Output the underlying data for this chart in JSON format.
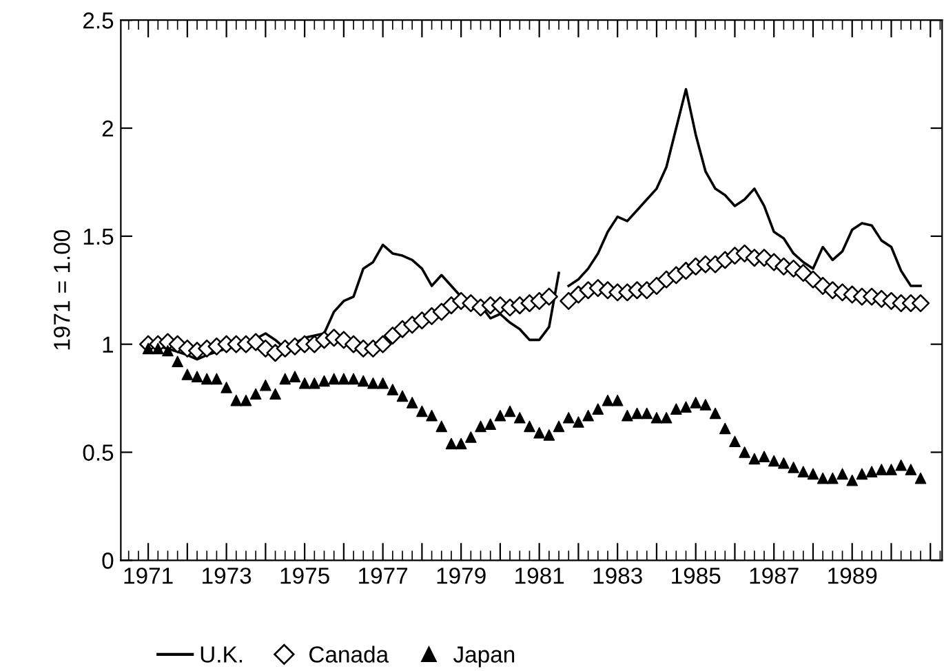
{
  "chart_data": {
    "type": "line",
    "ylabel": "1971 = 1.00",
    "xlim": [
      1970.3,
      1991.3
    ],
    "ylim": [
      0,
      2.5
    ],
    "xticks": [
      1971,
      {
        "value": 1972,
        "label": null
      },
      1973,
      {
        "value": 1974,
        "label": null
      },
      1975,
      {
        "value": 1976,
        "label": null
      },
      1977,
      {
        "value": 1978,
        "label": null
      },
      1979,
      {
        "value": 1980,
        "label": null
      },
      1981,
      {
        "value": 1982,
        "label": null
      },
      1983,
      {
        "value": 1984,
        "label": null
      },
      1985,
      {
        "value": 1986,
        "label": null
      },
      1987,
      {
        "value": 1988,
        "label": null
      },
      1989,
      {
        "value": 1990,
        "label": null
      },
      {
        "value": 1991,
        "label": null
      }
    ],
    "yticks": [
      0,
      0.5,
      1,
      1.5,
      2,
      2.5
    ],
    "grid": false,
    "legend": "bottom",
    "series": [
      {
        "name": "U.K.",
        "color": "#000000",
        "marker": "none",
        "line_style": "solid",
        "x": [
          1971,
          1971.5,
          1972,
          1972.25,
          1972.5,
          1973,
          1973.5,
          1974,
          1974.25,
          1974.5,
          1975,
          1975.5,
          1975.75,
          1976,
          1976.25,
          1976.5,
          1976.75,
          1977,
          1977.25,
          1977.5,
          1977.75,
          1978,
          1978.25,
          1978.5,
          1978.75,
          1979,
          1979.5,
          1979.75,
          1980,
          1980.25,
          1980.5,
          1980.75,
          1981,
          1981.25,
          1981.5,
          1981.6,
          1981.75,
          1982,
          1982.25,
          1982.5,
          1982.75,
          1983,
          1983.25,
          1983.5,
          1983.75,
          1984,
          1984.25,
          1984.5,
          1984.75,
          1985,
          1985.25,
          1985.5,
          1985.75,
          1986,
          1986.25,
          1986.5,
          1986.75,
          1987,
          1987.25,
          1987.5,
          1987.75,
          1988,
          1988.25,
          1988.5,
          1988.75,
          1989,
          1989.25,
          1989.5,
          1989.75,
          1990,
          1990.25,
          1990.5,
          1990.75
        ],
        "values": [
          1.0,
          0.98,
          0.95,
          0.93,
          0.95,
          0.98,
          1.0,
          1.05,
          1.02,
          0.98,
          1.03,
          1.05,
          1.15,
          1.2,
          1.22,
          1.35,
          1.38,
          1.46,
          1.42,
          1.41,
          1.39,
          1.35,
          1.27,
          1.32,
          1.27,
          1.22,
          1.18,
          1.12,
          1.14,
          1.1,
          1.07,
          1.02,
          1.02,
          1.08,
          1.33,
          null,
          1.27,
          1.3,
          1.35,
          1.42,
          1.52,
          1.59,
          1.57,
          1.62,
          1.67,
          1.72,
          1.82,
          2.0,
          2.18,
          1.97,
          1.8,
          1.72,
          1.69,
          1.64,
          1.67,
          1.72,
          1.64,
          1.52,
          1.49,
          1.42,
          1.38,
          1.35,
          1.45,
          1.39,
          1.43,
          1.53,
          1.56,
          1.55,
          1.48,
          1.45,
          1.34,
          1.27,
          1.27
        ]
      },
      {
        "name": "Canada",
        "type": "scatter",
        "color": "#000000",
        "marker": "diamond",
        "x": [
          1971,
          1971.25,
          1971.5,
          1971.75,
          1972,
          1972.25,
          1972.5,
          1972.75,
          1973,
          1973.25,
          1973.5,
          1973.75,
          1974,
          1974.25,
          1974.5,
          1974.75,
          1975,
          1975.25,
          1975.5,
          1975.75,
          1976,
          1976.25,
          1976.5,
          1976.75,
          1977,
          1977.25,
          1977.5,
          1977.75,
          1978,
          1978.25,
          1978.5,
          1978.75,
          1979,
          1979.25,
          1979.5,
          1979.75,
          1980,
          1980.25,
          1980.5,
          1980.75,
          1981,
          1981.25,
          1981.5,
          1981.75,
          1982,
          1982.25,
          1982.5,
          1982.75,
          1983,
          1983.25,
          1983.5,
          1983.75,
          1984,
          1984.25,
          1984.5,
          1984.75,
          1985,
          1985.25,
          1985.5,
          1985.75,
          1986,
          1986.25,
          1986.5,
          1986.75,
          1987,
          1987.25,
          1987.5,
          1987.75,
          1988,
          1988.25,
          1988.5,
          1988.75,
          1989,
          1989.25,
          1989.5,
          1989.75,
          1990,
          1990.25,
          1990.5,
          1990.75
        ],
        "values": [
          1.0,
          1.0,
          1.01,
          1.0,
          0.98,
          0.97,
          0.98,
          0.99,
          1.0,
          1.0,
          1.0,
          1.01,
          0.98,
          0.96,
          0.98,
          0.99,
          1.0,
          1.0,
          1.02,
          1.03,
          1.02,
          1.0,
          0.98,
          0.98,
          1.0,
          1.04,
          1.07,
          1.09,
          1.11,
          1.13,
          1.15,
          1.18,
          1.2,
          1.19,
          1.17,
          1.18,
          1.18,
          1.17,
          1.18,
          1.19,
          1.2,
          1.22,
          null,
          1.2,
          1.23,
          1.25,
          1.26,
          1.25,
          1.24,
          1.24,
          1.25,
          1.25,
          1.27,
          1.3,
          1.32,
          1.34,
          1.36,
          1.37,
          1.37,
          1.39,
          1.41,
          1.42,
          1.4,
          1.4,
          1.38,
          1.36,
          1.35,
          1.33,
          1.3,
          1.27,
          1.25,
          1.24,
          1.23,
          1.22,
          1.22,
          1.21,
          1.2,
          1.19,
          1.19,
          1.19
        ]
      },
      {
        "name": "Japan",
        "type": "scatter",
        "color": "#000000",
        "marker": "triangle",
        "x": [
          1971,
          1971.25,
          1971.5,
          1971.75,
          1972,
          1972.25,
          1972.5,
          1972.75,
          1973,
          1973.25,
          1973.5,
          1973.75,
          1974,
          1974.25,
          1974.5,
          1974.75,
          1975,
          1975.25,
          1975.5,
          1975.75,
          1976,
          1976.25,
          1976.5,
          1976.75,
          1977,
          1977.25,
          1977.5,
          1977.75,
          1978,
          1978.25,
          1978.5,
          1978.75,
          1979,
          1979.25,
          1979.5,
          1979.75,
          1980,
          1980.25,
          1980.5,
          1980.75,
          1981,
          1981.25,
          1981.5,
          1981.75,
          1982,
          1982.25,
          1982.5,
          1982.75,
          1983,
          1983.25,
          1983.5,
          1983.75,
          1984,
          1984.25,
          1984.5,
          1984.75,
          1985,
          1985.25,
          1985.5,
          1985.75,
          1986,
          1986.25,
          1986.5,
          1986.75,
          1987,
          1987.25,
          1987.5,
          1987.75,
          1988,
          1988.25,
          1988.5,
          1988.75,
          1989,
          1989.25,
          1989.5,
          1989.75,
          1990,
          1990.25,
          1990.5,
          1990.75
        ],
        "values": [
          0.98,
          0.98,
          0.97,
          0.92,
          0.86,
          0.85,
          0.84,
          0.84,
          0.8,
          0.74,
          0.74,
          0.77,
          0.81,
          0.77,
          0.84,
          0.85,
          0.82,
          0.82,
          0.83,
          0.84,
          0.84,
          0.84,
          0.83,
          0.82,
          0.82,
          0.79,
          0.76,
          0.73,
          0.69,
          0.67,
          0.62,
          0.54,
          0.54,
          0.57,
          0.62,
          0.63,
          0.67,
          0.69,
          0.66,
          0.62,
          0.59,
          0.58,
          0.62,
          0.66,
          0.64,
          0.67,
          0.7,
          0.74,
          0.74,
          0.67,
          0.68,
          0.68,
          0.66,
          0.66,
          0.7,
          0.71,
          0.73,
          0.72,
          0.68,
          0.61,
          0.55,
          0.5,
          0.47,
          0.48,
          0.46,
          0.45,
          0.43,
          0.41,
          0.4,
          0.38,
          0.38,
          0.4,
          0.37,
          0.4,
          0.41,
          0.42,
          0.42,
          0.44,
          0.42,
          0.38
        ]
      }
    ]
  }
}
